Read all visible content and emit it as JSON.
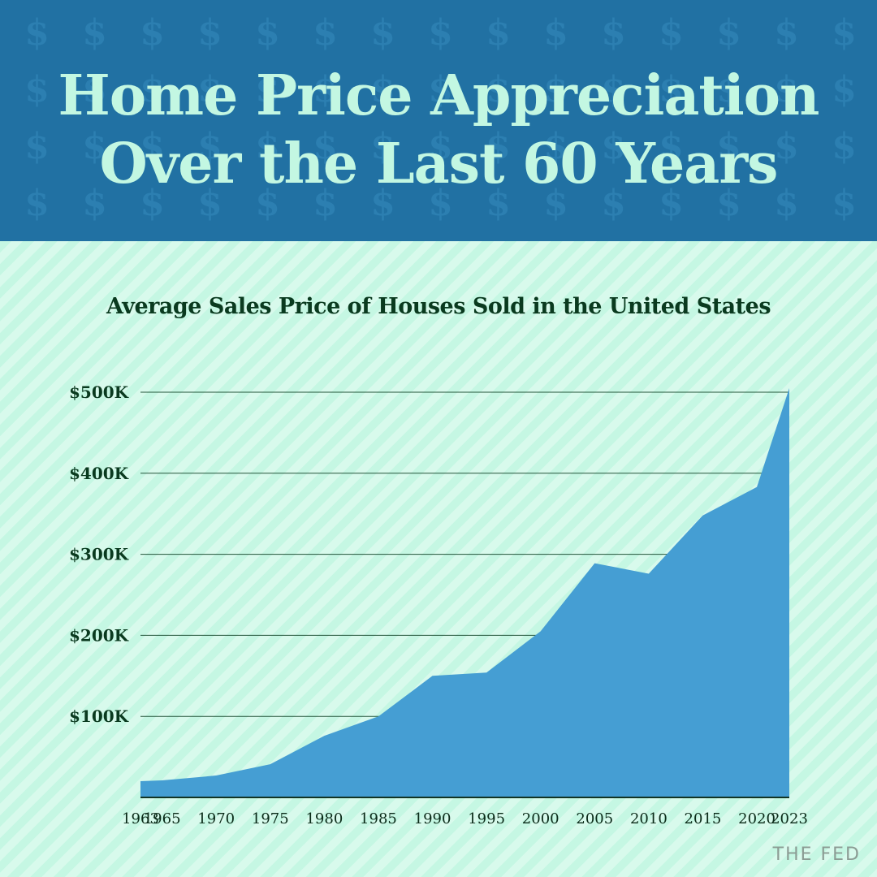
{
  "header": {
    "title_line1": "Home Price Appreciation",
    "title_line2": "Over the Last 60 Years",
    "pattern_glyph": "$"
  },
  "colors": {
    "header_bg": "#2171a3",
    "title_text": "#c3f7e2",
    "chart_bg": "#c5f7e3",
    "area_fill": "#459ed3",
    "text_dark": "#0a3a1f"
  },
  "brand": {
    "label": "THE FED"
  },
  "chart_data": {
    "type": "area",
    "title": "Average Sales Price of Houses Sold in the United States",
    "xlabel": "",
    "ylabel": "",
    "x": [
      1963,
      1965,
      1970,
      1975,
      1980,
      1985,
      1990,
      1995,
      2000,
      2005,
      2010,
      2015,
      2020,
      2023
    ],
    "x_tick_labels": [
      "1963",
      "1965",
      "1970",
      "1975",
      "1980",
      "1985",
      "1990",
      "1995",
      "2000",
      "2005",
      "2010",
      "2015",
      "2020",
      "2023"
    ],
    "values": [
      20000,
      21000,
      27000,
      41000,
      76000,
      100000,
      150000,
      154000,
      205000,
      289000,
      276000,
      348000,
      383000,
      505000
    ],
    "y_ticks": [
      100000,
      200000,
      300000,
      400000,
      500000
    ],
    "y_tick_labels": [
      "$100K",
      "$200K",
      "$300K",
      "$400K",
      "$500K"
    ],
    "ylim": [
      0,
      500000
    ],
    "grid": "horizontal"
  }
}
